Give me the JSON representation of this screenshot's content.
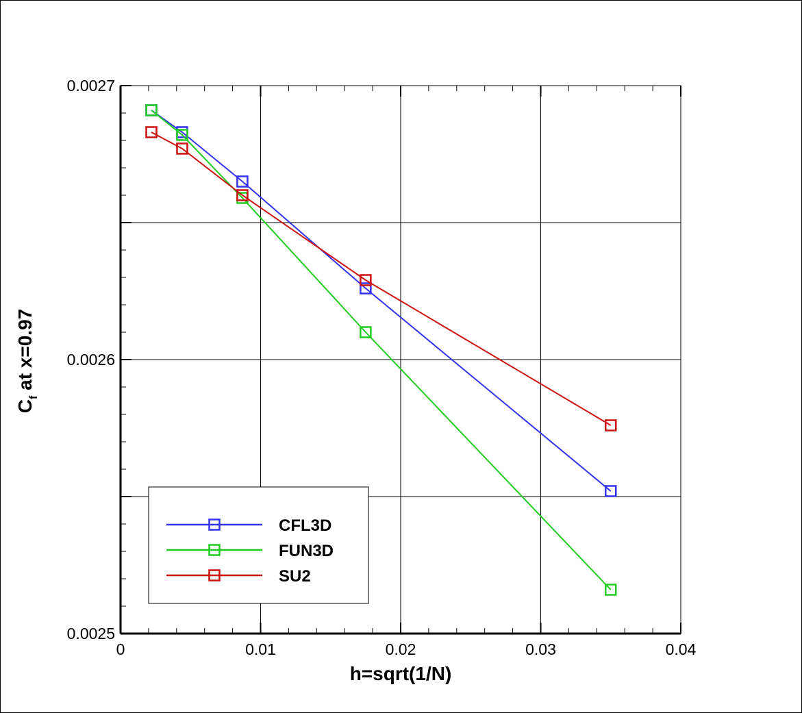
{
  "chart_data": {
    "type": "line",
    "xlabel": "h=sqrt(1/N)",
    "ylabel_main": "C",
    "ylabel_sub": "f",
    "ylabel_rest": " at x=0.97",
    "xlim": [
      0,
      0.04
    ],
    "ylim": [
      0.0025,
      0.0027
    ],
    "x_ticks": [
      0,
      0.01,
      0.02,
      0.03,
      0.04
    ],
    "x_tick_labels": [
      "0",
      "0.01",
      "0.02",
      "0.03",
      "0.04"
    ],
    "y_ticks": [
      0.0025,
      0.0026,
      0.0027
    ],
    "y_tick_labels": [
      "0.0025",
      "0.0026",
      "0.0027"
    ],
    "y_gridlines": [
      0.0025,
      0.00255,
      0.0026,
      0.00265,
      0.0027
    ],
    "grid": true,
    "legend_position": "bottom-left",
    "marker": "square",
    "series": [
      {
        "name": "CFL3D",
        "color": "#3333ee",
        "x": [
          0.0022,
          0.0044,
          0.0087,
          0.0175,
          0.035
        ],
        "y": [
          0.002691,
          0.002683,
          0.002665,
          0.002626,
          0.002552
        ]
      },
      {
        "name": "FUN3D",
        "color": "#22cc22",
        "x": [
          0.0022,
          0.0044,
          0.0087,
          0.0175,
          0.035
        ],
        "y": [
          0.002691,
          0.002682,
          0.002659,
          0.00261,
          0.002516
        ]
      },
      {
        "name": "SU2",
        "color": "#cc1111",
        "x": [
          0.0022,
          0.0044,
          0.0087,
          0.0175,
          0.035
        ],
        "y": [
          0.002683,
          0.002677,
          0.00266,
          0.002629,
          0.002576
        ]
      }
    ]
  }
}
